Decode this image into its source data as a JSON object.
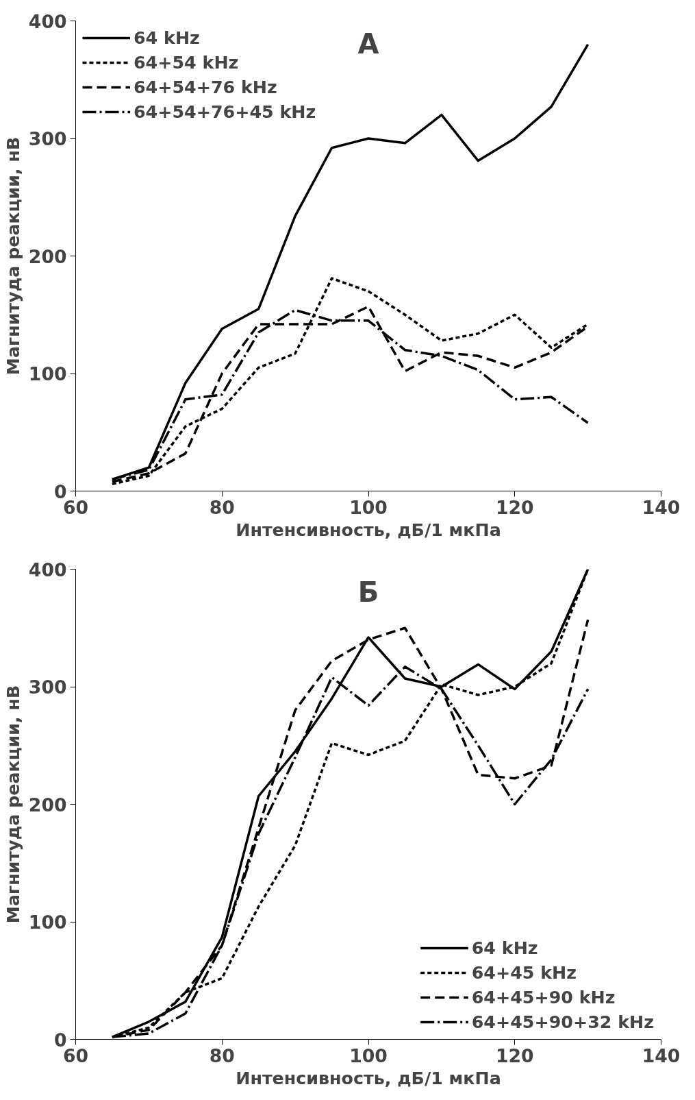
{
  "chart_data": [
    {
      "type": "line",
      "title": "А",
      "xlabel": "Интенсивность, дБ/1 мкПа",
      "ylabel": "Магнитуда реакции, нВ",
      "x": [
        65,
        70,
        75,
        80,
        85,
        90,
        95,
        100,
        105,
        110,
        115,
        120,
        125,
        130
      ],
      "series": [
        {
          "name": "64 kHz",
          "color": "#000000",
          "line_style": "solid",
          "values": [
            10,
            20,
            92,
            138,
            155,
            234,
            292,
            300,
            296,
            320,
            281,
            300,
            327,
            380
          ]
        },
        {
          "name": "64+54 kHz",
          "color": "#000000",
          "line_style": "dashed",
          "values": [
            6,
            13,
            55,
            70,
            105,
            117,
            181,
            170,
            150,
            128,
            134,
            150,
            122,
            142
          ]
        },
        {
          "name": "64+54+76 kHz",
          "color": "#000000",
          "line_style": "dashed",
          "values": [
            8,
            15,
            32,
            100,
            142,
            142,
            142,
            157,
            102,
            118,
            115,
            105,
            118,
            140
          ]
        },
        {
          "name": "64+54+76+45 kHz",
          "color": "#000000",
          "line_style": "dashed",
          "values": [
            10,
            18,
            78,
            82,
            135,
            154,
            145,
            145,
            120,
            115,
            103,
            78,
            80,
            58
          ]
        }
      ],
      "xlim": [
        60,
        140
      ],
      "xticks": [
        60,
        80,
        100,
        120,
        140
      ],
      "ylim": [
        0,
        400
      ],
      "yticks": [
        0,
        100,
        200,
        300,
        400
      ],
      "legend": "top left"
    },
    {
      "type": "line",
      "title": "Б",
      "xlabel": "Интенсивность, дБ/1 мкПа",
      "ylabel": "Магнитуда реакции, нВ",
      "x": [
        65,
        70,
        75,
        80,
        85,
        90,
        95,
        100,
        105,
        110,
        115,
        120,
        125,
        130
      ],
      "series": [
        {
          "name": "64 kHz",
          "color": "#000000",
          "line_style": "solid",
          "values": [
            2,
            15,
            32,
            87,
            207,
            245,
            290,
            342,
            307,
            300,
            319,
            298,
            330,
            400
          ]
        },
        {
          "name": "64+45 kHz",
          "color": "#000000",
          "line_style": "dashed",
          "values": [
            2,
            10,
            40,
            52,
            113,
            165,
            252,
            242,
            254,
            302,
            293,
            300,
            320,
            400
          ]
        },
        {
          "name": "64+45+90 kHz",
          "color": "#000000",
          "line_style": "dashed",
          "values": [
            2,
            8,
            40,
            80,
            180,
            280,
            322,
            340,
            350,
            298,
            225,
            222,
            233,
            357
          ]
        },
        {
          "name": "64+45+90+32 kHz",
          "color": "#000000",
          "line_style": "dashed",
          "values": [
            2,
            5,
            22,
            80,
            175,
            240,
            308,
            284,
            317,
            298,
            250,
            200,
            238,
            298
          ]
        }
      ],
      "xlim": [
        60,
        140
      ],
      "xticks": [
        60,
        80,
        100,
        120,
        140
      ],
      "ylim": [
        0,
        400
      ],
      "yticks": [
        0,
        100,
        200,
        300,
        400
      ],
      "legend": "bottom right"
    }
  ]
}
